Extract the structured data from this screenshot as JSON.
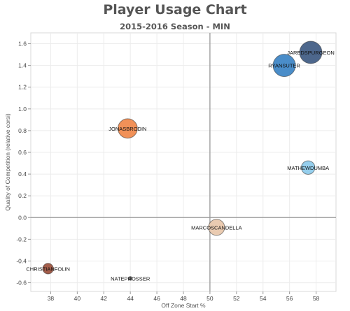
{
  "chart_data": {
    "type": "scatter",
    "title": "Player Usage Chart",
    "subtitle": "2015-2016 Season - MIN",
    "xlabel": "Off Zone Start %",
    "ylabel": "Quality of Competition (relative corsi)",
    "xlim": [
      36.5,
      59.5
    ],
    "ylim": [
      -0.68,
      1.7
    ],
    "xticks": [
      38,
      40,
      42,
      44,
      46,
      48,
      50,
      52,
      54,
      56,
      58
    ],
    "yticks": [
      -0.6,
      -0.4,
      -0.2,
      0.0,
      0.2,
      0.4,
      0.6,
      0.8,
      1.0,
      1.2,
      1.4,
      1.6
    ],
    "reference_lines": {
      "x": 50,
      "y": 0.0
    },
    "grid": true,
    "points": [
      {
        "label": "JAREDSPURGEON",
        "x": 57.6,
        "y": 1.52,
        "size": 1.0,
        "color": "#3e5a82"
      },
      {
        "label": "RYANSUTER",
        "x": 55.6,
        "y": 1.4,
        "size": 1.0,
        "color": "#3b83c4"
      },
      {
        "label": "JONASBRODIN",
        "x": 43.8,
        "y": 0.82,
        "size": 0.85,
        "color": "#f0884a"
      },
      {
        "label": "MATHEWDUMBA",
        "x": 57.4,
        "y": 0.46,
        "size": 0.55,
        "color": "#8ccaea"
      },
      {
        "label": "MARCOSCANDELLA",
        "x": 50.5,
        "y": -0.09,
        "size": 0.68,
        "color": "#e8c7aa"
      },
      {
        "label": "CHRISTIANFOLIN",
        "x": 37.8,
        "y": -0.47,
        "size": 0.4,
        "color": "#9b4f3b"
      },
      {
        "label": "NATEPROSSER",
        "x": 44.0,
        "y": -0.56,
        "size": 0.05,
        "color": "#666666"
      }
    ]
  }
}
